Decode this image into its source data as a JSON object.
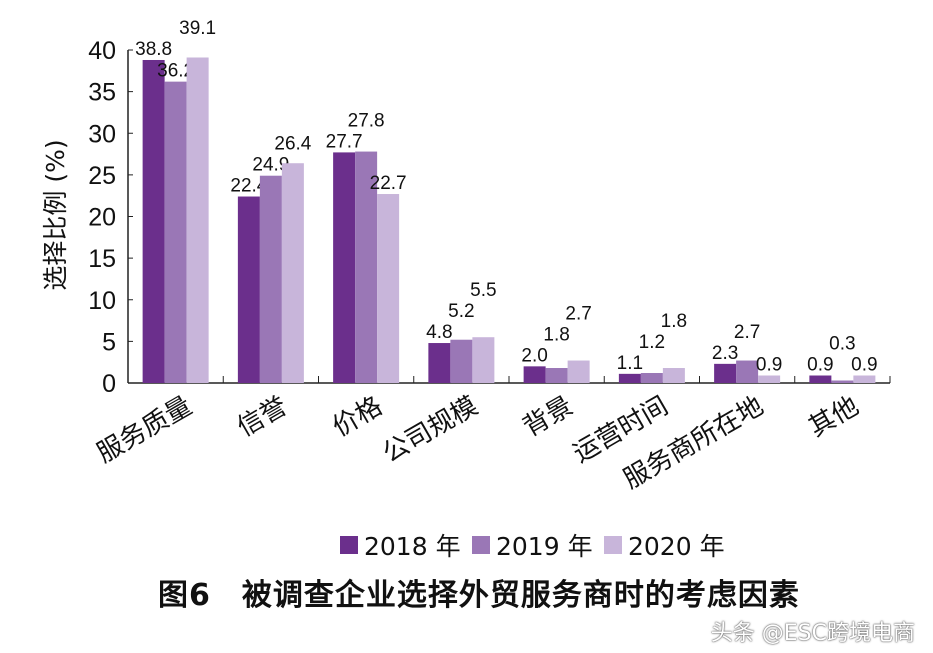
{
  "chart_data": {
    "type": "bar",
    "title": "",
    "xlabel": "",
    "ylabel": "选择比例 (%)",
    "ylim": [
      0,
      40
    ],
    "yticks": [
      0,
      5,
      10,
      15,
      20,
      25,
      30,
      35,
      40
    ],
    "grid": false,
    "legend_placement": "bottom",
    "categories": [
      "服务质量",
      "信誉",
      "价格",
      "公司规模",
      "背景",
      "运营时间",
      "服务商所在地",
      "其他"
    ],
    "series": [
      {
        "name": "2018 年",
        "color": "#6b2f8c",
        "values": [
          38.8,
          22.4,
          27.7,
          4.8,
          2.0,
          1.1,
          2.3,
          0.9
        ]
      },
      {
        "name": "2019 年",
        "color": "#9a77b6",
        "values": [
          36.2,
          24.9,
          27.8,
          5.2,
          1.8,
          1.2,
          2.7,
          0.3
        ]
      },
      {
        "name": "2020 年",
        "color": "#c8b5da",
        "values": [
          39.1,
          26.4,
          22.7,
          5.5,
          2.7,
          1.8,
          0.9,
          0.9
        ]
      }
    ]
  },
  "caption": "图6　被调查企业选择外贸服务商时的考虑因素",
  "watermark": "头条 @ESC跨境电商"
}
